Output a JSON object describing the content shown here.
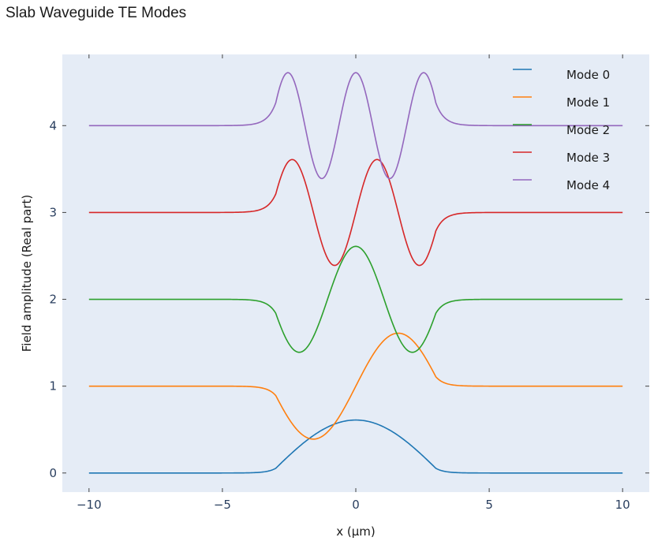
{
  "chart_data": {
    "type": "line",
    "title": "Slab Waveguide TE Modes",
    "xlabel": "x (μm)",
    "ylabel": "Field amplitude (Real part)",
    "xlim": [
      -11,
      11
    ],
    "ylim": [
      -0.22,
      4.82
    ],
    "xticks": [
      -10,
      -5,
      0,
      5,
      10
    ],
    "xtick_labels": [
      "−10",
      "−5",
      "0",
      "5",
      "10"
    ],
    "yticks": [
      0,
      1,
      2,
      3,
      4
    ],
    "ytick_labels": [
      "0",
      "1",
      "2",
      "3",
      "4"
    ],
    "grid": false,
    "legend_position": "top-right",
    "slab_half_width": 3,
    "series": [
      {
        "name": "Mode 0",
        "color": "#1f77b4",
        "offset": 0,
        "amplitude": 0.61,
        "order": 0
      },
      {
        "name": "Mode 1",
        "color": "#ff7f0e",
        "offset": 1,
        "amplitude": 0.61,
        "order": 1
      },
      {
        "name": "Mode 2",
        "color": "#2ca02c",
        "offset": 2,
        "amplitude": 0.61,
        "order": 2
      },
      {
        "name": "Mode 3",
        "color": "#d62728",
        "offset": 3,
        "amplitude": 0.61,
        "order": 3
      },
      {
        "name": "Mode 4",
        "color": "#9467bd",
        "offset": 4,
        "amplitude": 0.61,
        "order": 4
      }
    ]
  }
}
